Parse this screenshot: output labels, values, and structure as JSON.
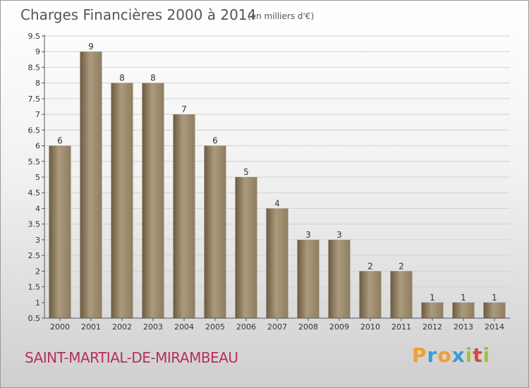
{
  "chart_data": {
    "type": "bar",
    "title": "Charges Financières 2000 à 2014",
    "subtitle": "(en milliers d'€)",
    "categories": [
      "2000",
      "2001",
      "2002",
      "2003",
      "2004",
      "2005",
      "2006",
      "2007",
      "2008",
      "2009",
      "2010",
      "2011",
      "2012",
      "2013",
      "2014"
    ],
    "values": [
      6,
      9,
      8,
      8,
      7,
      6,
      5,
      4,
      3,
      3,
      2,
      2,
      1,
      1,
      1
    ],
    "ylim": [
      0.5,
      9.5
    ],
    "yticks": [
      "0.5",
      "1",
      "1.5",
      "2",
      "2.5",
      "3",
      "3.5",
      "4",
      "4.5",
      "5",
      "5.5",
      "6",
      "6.5",
      "7",
      "7.5",
      "8",
      "8.5",
      "9",
      "9.5"
    ],
    "grid": true,
    "bar_color": "#8f7d60",
    "bar_color_dark": "#6b5a40",
    "bar_color_light": "#ab9a7c"
  },
  "footer": {
    "commune": "SAINT-MARTIAL-DE-MIRAMBEAU",
    "logo": [
      "P",
      "r",
      "o",
      "x",
      "i",
      "t",
      "i"
    ],
    "logo_colors": [
      "#f0a030",
      "#3c9ad6",
      "#f0a030",
      "#3c9ad6",
      "#9bc33c",
      "#e0433a",
      "#9bc33c"
    ]
  }
}
